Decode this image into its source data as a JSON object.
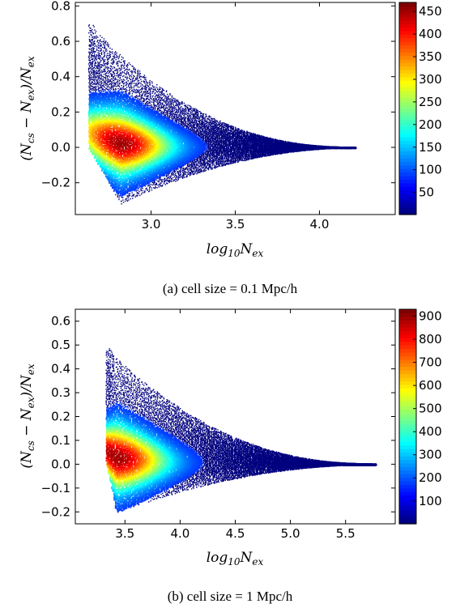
{
  "chart_data": [
    {
      "type": "heatmap",
      "xlabel": "log₁₀N_ex",
      "ylabel": "(N_cs − N_ex)/N_ex",
      "xlim": [
        2.55,
        4.45
      ],
      "ylim": [
        -0.38,
        0.82
      ],
      "xticks": [
        "3.0",
        "3.5",
        "4.0"
      ],
      "xtick_values": [
        3.0,
        3.5,
        4.0
      ],
      "yticks": [
        "−0.2",
        "0.0",
        "0.2",
        "0.4",
        "0.6",
        "0.8"
      ],
      "ytick_values": [
        -0.2,
        0.0,
        0.2,
        0.4,
        0.6,
        0.8
      ],
      "colorbar": {
        "min": 1,
        "max": 470,
        "ticks": [
          "50",
          "100",
          "150",
          "200",
          "250",
          "300",
          "350",
          "400",
          "450"
        ],
        "tick_values": [
          50,
          100,
          150,
          200,
          250,
          300,
          350,
          400,
          450
        ],
        "colormap": "jet"
      },
      "distribution": {
        "x_start": 2.63,
        "x_peak": 2.82,
        "x_end": 4.22,
        "peak_count": 470,
        "upper_max": 0.7,
        "lower_min": -0.33
      },
      "caption": "(a) cell size = 0.1 Mpc/h"
    },
    {
      "type": "heatmap",
      "xlabel": "log₁₀N_ex",
      "ylabel": "(N_cs − N_ex)/N_ex",
      "xlim": [
        3.05,
        5.95
      ],
      "ylim": [
        -0.25,
        0.65
      ],
      "xticks": [
        "3.5",
        "4.0",
        "4.5",
        "5.0",
        "5.5"
      ],
      "xtick_values": [
        3.5,
        4.0,
        4.5,
        5.0,
        5.5
      ],
      "yticks": [
        "−0.2",
        "−0.1",
        "0.0",
        "0.1",
        "0.2",
        "0.3",
        "0.4",
        "0.5",
        "0.6"
      ],
      "ytick_values": [
        -0.2,
        -0.1,
        0.0,
        0.1,
        0.2,
        0.3,
        0.4,
        0.5,
        0.6
      ],
      "colorbar": {
        "min": 1,
        "max": 930,
        "ticks": [
          "100",
          "200",
          "300",
          "400",
          "500",
          "600",
          "700",
          "800",
          "900"
        ],
        "tick_values": [
          100,
          200,
          300,
          400,
          500,
          600,
          700,
          800,
          900
        ],
        "colormap": "jet"
      },
      "distribution": {
        "x_start": 3.33,
        "x_peak": 3.42,
        "x_end": 5.78,
        "peak_count": 930,
        "upper_max": 0.49,
        "lower_min": -0.21
      },
      "caption": "(b) cell size = 1 Mpc/h"
    }
  ]
}
